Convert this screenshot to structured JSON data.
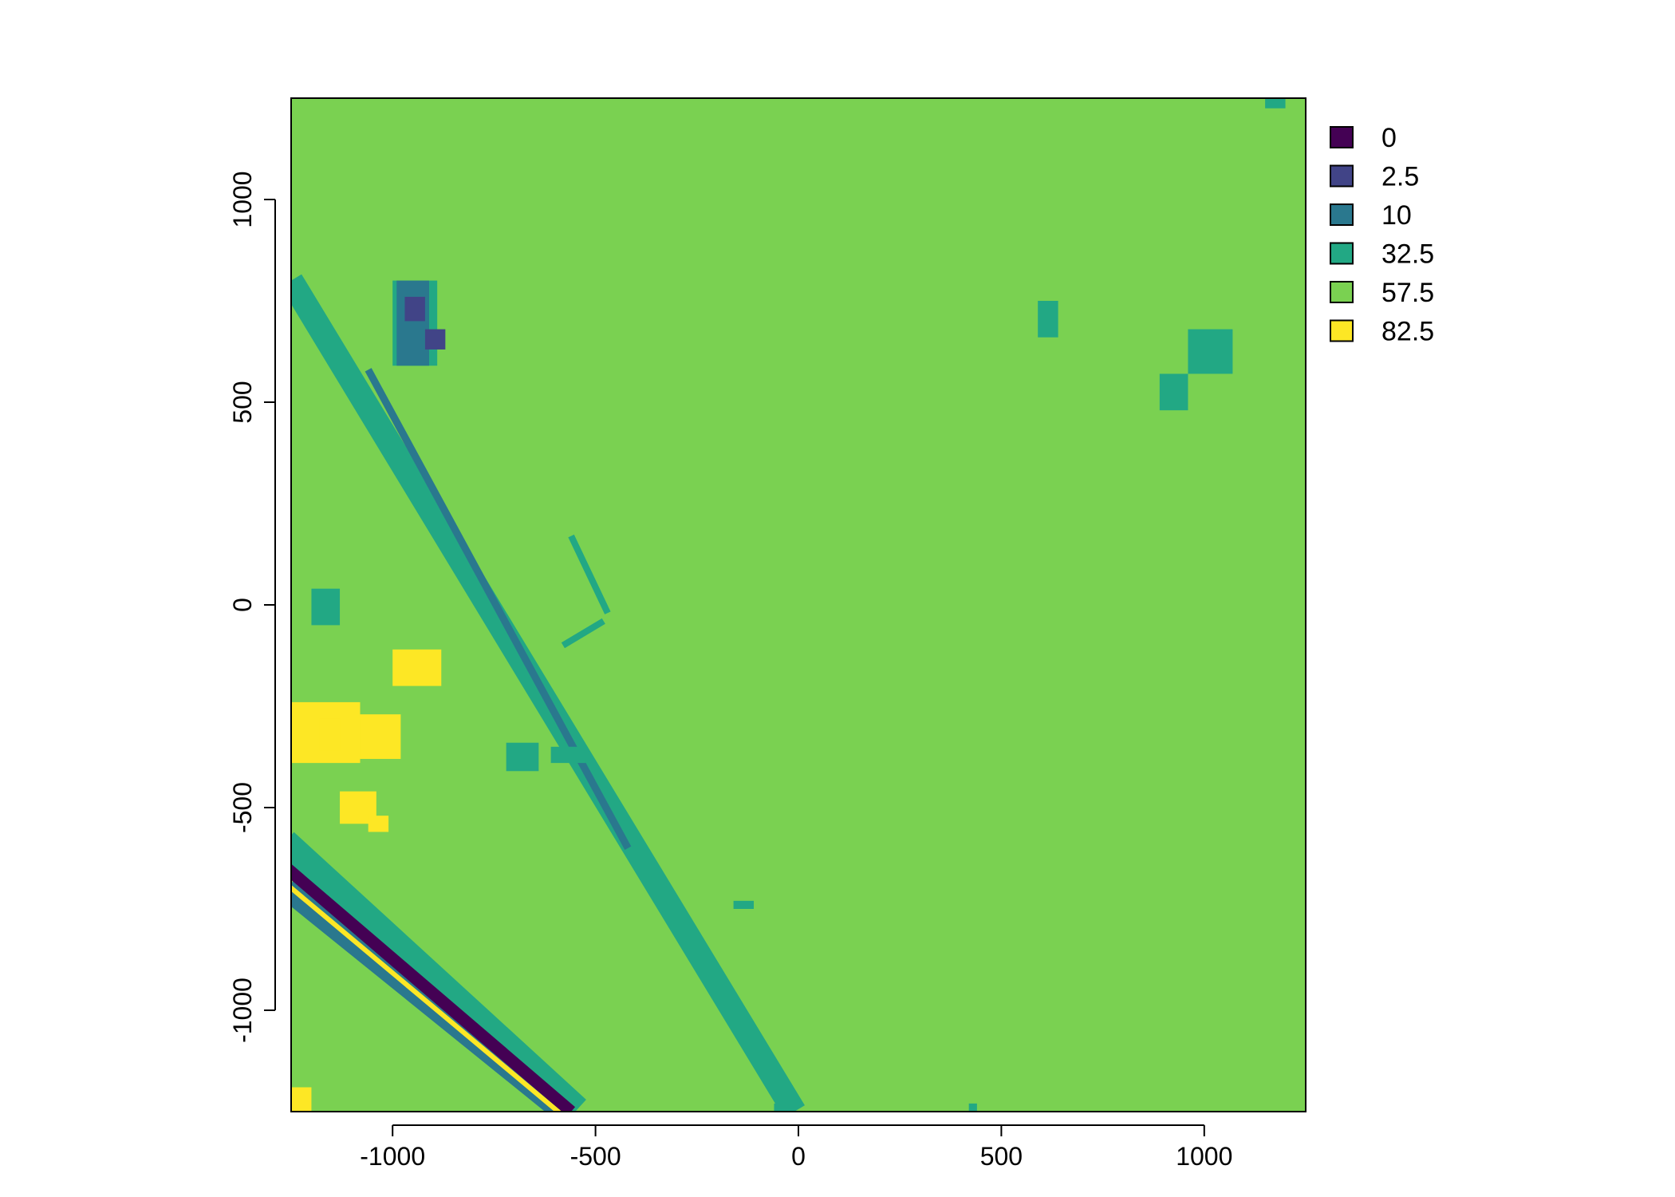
{
  "chart_data": {
    "type": "heatmap",
    "title": "",
    "xlabel": "",
    "ylabel": "",
    "xlim": [
      -1250,
      1250
    ],
    "ylim": [
      -1250,
      1250
    ],
    "x_ticks": [
      -1000,
      -500,
      0,
      500,
      1000
    ],
    "y_ticks": [
      -1000,
      -500,
      0,
      500,
      1000
    ],
    "x_tick_labels": [
      "-1000",
      "-500",
      "0",
      "500",
      "1000"
    ],
    "y_tick_labels": [
      "-1000",
      "-500",
      "0",
      "500",
      "1000"
    ],
    "background_class": "57.5",
    "legend_position": "right",
    "legend": [
      {
        "label": "0",
        "color": "#440154"
      },
      {
        "label": "2.5",
        "color": "#414487"
      },
      {
        "label": "10",
        "color": "#2A788E"
      },
      {
        "label": "32.5",
        "color": "#22A884"
      },
      {
        "label": "57.5",
        "color": "#7AD151"
      },
      {
        "label": "82.5",
        "color": "#FDE725"
      }
    ],
    "regions": [
      {
        "class": "32.5",
        "x": [
          1150,
          1200
        ],
        "y": [
          1225,
          1250
        ]
      },
      {
        "class": "32.5",
        "x": [
          590,
          640
        ],
        "y": [
          660,
          750
        ]
      },
      {
        "class": "32.5",
        "x": [
          960,
          1070
        ],
        "y": [
          570,
          680
        ]
      },
      {
        "class": "32.5",
        "x": [
          890,
          960
        ],
        "y": [
          480,
          570
        ]
      },
      {
        "class": "32.5",
        "x": [
          -1200,
          -1130
        ],
        "y": [
          -50,
          40
        ]
      },
      {
        "class": "32.5",
        "x": [
          -720,
          -640
        ],
        "y": [
          -410,
          -340
        ]
      },
      {
        "class": "32.5",
        "x": [
          -610,
          -520
        ],
        "y": [
          -390,
          -350
        ]
      },
      {
        "class": "32.5",
        "x": [
          -1000,
          -890
        ],
        "y": [
          590,
          800
        ]
      },
      {
        "class": "10",
        "x": [
          -990,
          -910
        ],
        "y": [
          590,
          800
        ]
      },
      {
        "class": "2.5",
        "x": [
          -970,
          -920
        ],
        "y": [
          700,
          760
        ]
      },
      {
        "class": "2.5",
        "x": [
          -920,
          -870
        ],
        "y": [
          630,
          680
        ]
      },
      {
        "class": "32.5",
        "x": [
          -60,
          -10
        ],
        "y": [
          -1250,
          -1230
        ]
      },
      {
        "class": "32.5",
        "x": [
          420,
          440
        ],
        "y": [
          -1250,
          -1230
        ]
      },
      {
        "class": "32.5",
        "x": [
          -160,
          -110
        ],
        "y": [
          -750,
          -730
        ]
      },
      {
        "class": "82.5",
        "x": [
          -1250,
          -1080
        ],
        "y": [
          -390,
          -240
        ]
      },
      {
        "class": "82.5",
        "x": [
          -1080,
          -980
        ],
        "y": [
          -380,
          -270
        ]
      },
      {
        "class": "82.5",
        "x": [
          -1000,
          -880
        ],
        "y": [
          -200,
          -110
        ]
      },
      {
        "class": "82.5",
        "x": [
          -1180,
          -1130
        ],
        "y": [
          -360,
          -280
        ]
      },
      {
        "class": "82.5",
        "x": [
          -1130,
          -1040
        ],
        "y": [
          -540,
          -460
        ]
      },
      {
        "class": "82.5",
        "x": [
          -1060,
          -1010
        ],
        "y": [
          -560,
          -520
        ]
      },
      {
        "class": "82.5",
        "x": [
          -1250,
          -1200
        ],
        "y": [
          -1250,
          -1190
        ]
      }
    ],
    "bands": [
      {
        "class": "32.5",
        "from": [
          -1250,
          800
        ],
        "to": [
          -10,
          -1250
        ],
        "width": 60
      },
      {
        "class": "10",
        "from": [
          -1060,
          580
        ],
        "to": [
          -420,
          -600
        ],
        "width": 18
      },
      {
        "class": "32.5",
        "from": [
          -1270,
          -590
        ],
        "to": [
          -550,
          -1250
        ],
        "width": 80
      },
      {
        "class": "10",
        "from": [
          -1260,
          -700
        ],
        "to": [
          -580,
          -1250
        ],
        "width": 56
      },
      {
        "class": "0",
        "from": [
          -1260,
          -650
        ],
        "to": [
          -560,
          -1250
        ],
        "width": 30
      },
      {
        "class": "82.5",
        "from": [
          -1260,
          -690
        ],
        "to": [
          -580,
          -1260
        ],
        "width": 12
      },
      {
        "class": "32.5",
        "from": [
          -580,
          -100
        ],
        "to": [
          -480,
          -40
        ],
        "width": 16
      },
      {
        "class": "32.5",
        "from": [
          -560,
          170
        ],
        "to": [
          -470,
          -20
        ],
        "width": 16
      }
    ]
  }
}
